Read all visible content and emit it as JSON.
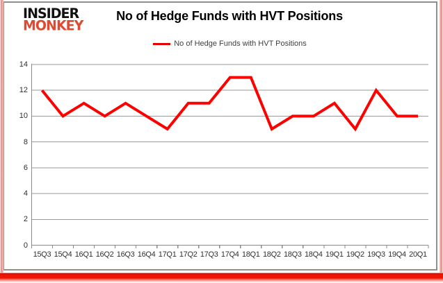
{
  "logo": {
    "line1": "INSIDER",
    "line2": "MONKEY"
  },
  "header": {
    "title": "No of Hedge Funds with HVT Positions"
  },
  "legend": {
    "label": "No of Hedge Funds with HVT Positions"
  },
  "chart_data": {
    "type": "line",
    "title": "No of Hedge Funds with HVT Positions",
    "categories": [
      "15Q3",
      "15Q4",
      "16Q1",
      "16Q2",
      "16Q3",
      "16Q4",
      "17Q1",
      "17Q2",
      "17Q3",
      "17Q4",
      "18Q1",
      "18Q2",
      "18Q3",
      "18Q4",
      "19Q1",
      "19Q2",
      "19Q3",
      "19Q4",
      "20Q1"
    ],
    "series": [
      {
        "name": "No of Hedge Funds with HVT Positions",
        "values": [
          12,
          10,
          11,
          10,
          11,
          10,
          9,
          11,
          11,
          13,
          13,
          9,
          10,
          10,
          11,
          9,
          12,
          10,
          10
        ],
        "color": "#ff0000"
      }
    ],
    "xlabel": "",
    "ylabel": "",
    "ylim": [
      0,
      14
    ],
    "ytick_step": 2,
    "grid": true,
    "legend_position": "top"
  },
  "colors": {
    "series_red": "#ff0000",
    "legend_red": "#e00000",
    "logo_black": "#111111",
    "logo_red": "#df4a31",
    "grid_gray": "#9a9a9a",
    "axis_gray": "#8a8a8a",
    "frame_gray": "#8f8f8f",
    "side_pink": "#ef9f98",
    "bottom_bar_red": "#ee1505",
    "label_text": "#2e2e2e"
  }
}
